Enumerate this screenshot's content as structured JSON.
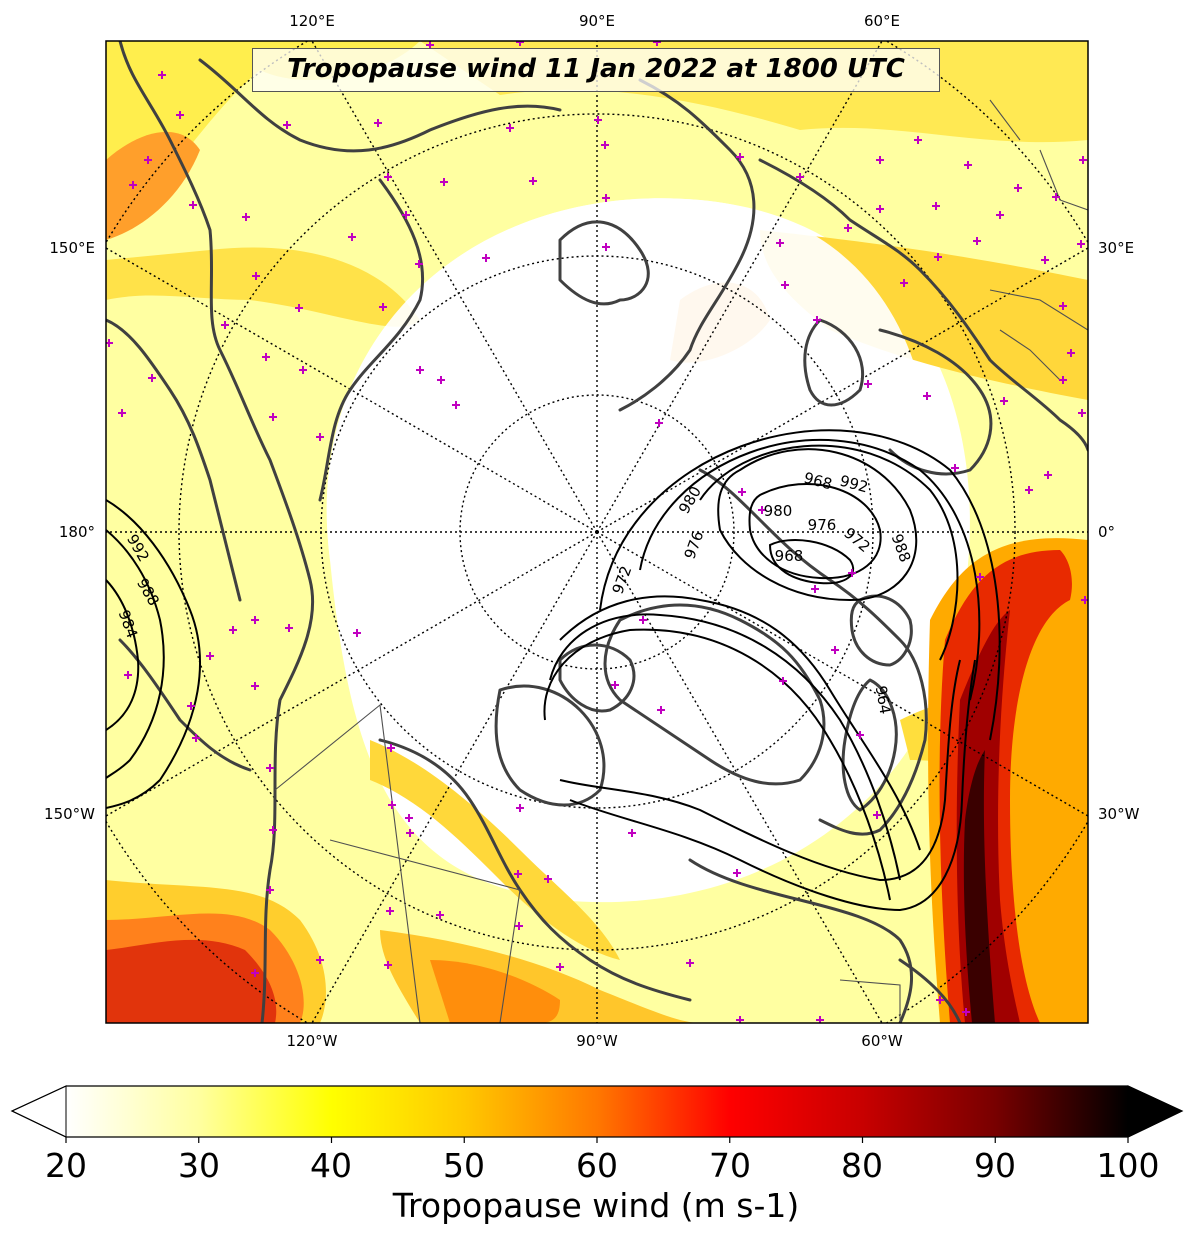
{
  "title": "Tropopause wind 11 Jan 2022 at 1800 UTC",
  "longitude_labels": {
    "top": [
      "120°E",
      "90°E",
      "60°E"
    ],
    "bottom": [
      "120°W",
      "90°W",
      "60°W"
    ],
    "left": [
      "150°E",
      "180°",
      "150°W"
    ],
    "right": [
      "30°E",
      "0°",
      "30°W"
    ]
  },
  "colorbar": {
    "label": "Tropopause wind (m s-1)",
    "ticks": [
      "20",
      "30",
      "40",
      "50",
      "60",
      "70",
      "80",
      "90",
      "100"
    ],
    "min": 20,
    "max": 100,
    "extend": "both",
    "colormap": "hot_r",
    "stops": [
      "#ffffff",
      "#ffffa0",
      "#ffff00",
      "#ffc800",
      "#ff7800",
      "#ff0000",
      "#c80000",
      "#780000",
      "#000000"
    ]
  },
  "pressure_contours": {
    "color": "#000000",
    "interval_hPa": 4,
    "labels": [
      "992",
      "988",
      "984",
      "980",
      "976",
      "972",
      "968",
      "992",
      "988",
      "980",
      "976",
      "972",
      "968",
      "964"
    ]
  },
  "colors": {
    "coastline": "#404040",
    "borders": "#505050",
    "graticule": "#000000",
    "station_marker": "#c000c0"
  },
  "station_marker_symbol": "+"
}
